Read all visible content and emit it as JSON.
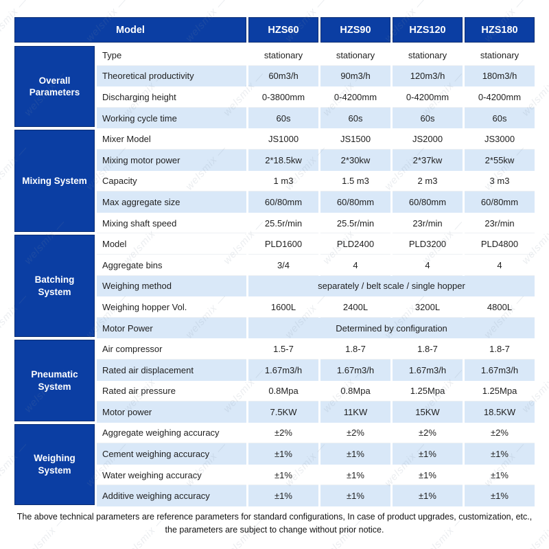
{
  "table": {
    "header": {
      "model_label": "Model",
      "columns": [
        "HZS60",
        "HZS90",
        "HZS120",
        "HZS180"
      ]
    },
    "sections": [
      {
        "name": "Overall Parameters",
        "rows": [
          {
            "label": "Type",
            "values": [
              "stationary",
              "stationary",
              "stationary",
              "stationary"
            ],
            "stripe": "w"
          },
          {
            "label": "Theoretical productivity",
            "values": [
              "60m3/h",
              "90m3/h",
              "120m3/h",
              "180m3/h"
            ],
            "stripe": "b"
          },
          {
            "label": "Discharging height",
            "values": [
              "0-3800mm",
              "0-4200mm",
              "0-4200mm",
              "0-4200mm"
            ],
            "stripe": "w"
          },
          {
            "label": "Working cycle time",
            "values": [
              "60s",
              "60s",
              "60s",
              "60s"
            ],
            "stripe": "b"
          }
        ]
      },
      {
        "name": "Mixing System",
        "rows": [
          {
            "label": "Mixer Model",
            "values": [
              "JS1000",
              "JS1500",
              "JS2000",
              "JS3000"
            ],
            "stripe": "w"
          },
          {
            "label": "Mixing motor power",
            "values": [
              "2*18.5kw",
              "2*30kw",
              "2*37kw",
              "2*55kw"
            ],
            "stripe": "b"
          },
          {
            "label": "Capacity",
            "values": [
              "1 m3",
              "1.5 m3",
              "2 m3",
              "3 m3"
            ],
            "stripe": "w"
          },
          {
            "label": "Max aggregate size",
            "values": [
              "60/80mm",
              "60/80mm",
              "60/80mm",
              "60/80mm"
            ],
            "stripe": "b"
          },
          {
            "label": "Mixing shaft speed",
            "values": [
              "25.5r/min",
              "25.5r/min",
              "23r/min",
              "23r/min"
            ],
            "stripe": "w"
          }
        ]
      },
      {
        "name": "Batching System",
        "rows": [
          {
            "label": "Model",
            "values": [
              "PLD1600",
              "PLD2400",
              "PLD3200",
              "PLD4800"
            ],
            "stripe": "w"
          },
          {
            "label": "Aggregate bins",
            "values": [
              "3/4",
              "4",
              "4",
              "4"
            ],
            "stripe": "w"
          },
          {
            "label": "Weighing method",
            "span": "separately / belt scale / single hopper",
            "stripe": "b"
          },
          {
            "label": "Weighing hopper Vol.",
            "values": [
              "1600L",
              "2400L",
              "3200L",
              "4800L"
            ],
            "stripe": "w"
          },
          {
            "label": "Motor Power",
            "span": "Determined by configuration",
            "stripe": "b"
          }
        ]
      },
      {
        "name": "Pneumatic System",
        "rows": [
          {
            "label": "Air compressor",
            "values": [
              "1.5-7",
              "1.8-7",
              "1.8-7",
              "1.8-7"
            ],
            "stripe": "w"
          },
          {
            "label": "Rated air displacement",
            "values": [
              "1.67m3/h",
              "1.67m3/h",
              "1.67m3/h",
              "1.67m3/h"
            ],
            "stripe": "b"
          },
          {
            "label": "Rated air pressure",
            "values": [
              "0.8Mpa",
              "0.8Mpa",
              "1.25Mpa",
              "1.25Mpa"
            ],
            "stripe": "w"
          },
          {
            "label": "Motor power",
            "values": [
              "7.5KW",
              "11KW",
              "15KW",
              "18.5KW"
            ],
            "stripe": "b"
          }
        ]
      },
      {
        "name": "Weighing System",
        "rows": [
          {
            "label": "Aggregate weighing accuracy",
            "values": [
              "±2%",
              "±2%",
              "±2%",
              "±2%"
            ],
            "stripe": "w"
          },
          {
            "label": "Cement weighing accuracy",
            "values": [
              "±1%",
              "±1%",
              "±1%",
              "±1%"
            ],
            "stripe": "b"
          },
          {
            "label": "Water weighing accuracy",
            "values": [
              "±1%",
              "±1%",
              "±1%",
              "±1%"
            ],
            "stripe": "w"
          },
          {
            "label": "Additive weighing accuracy",
            "values": [
              "±1%",
              "±1%",
              "±1%",
              "±1%"
            ],
            "stripe": "b"
          }
        ]
      }
    ]
  },
  "footer": {
    "line1": "The above technical parameters are reference parameters for standard configurations, In case of  product upgrades, customization, etc.,",
    "line2": "the parameters are subject to change without prior notice."
  },
  "watermark": {
    "text": "welsmix"
  },
  "colors": {
    "header_blue": "#0b3ea3",
    "cell_border_blue": "#0a2d72",
    "stripe_blue": "#d9e8f8"
  }
}
